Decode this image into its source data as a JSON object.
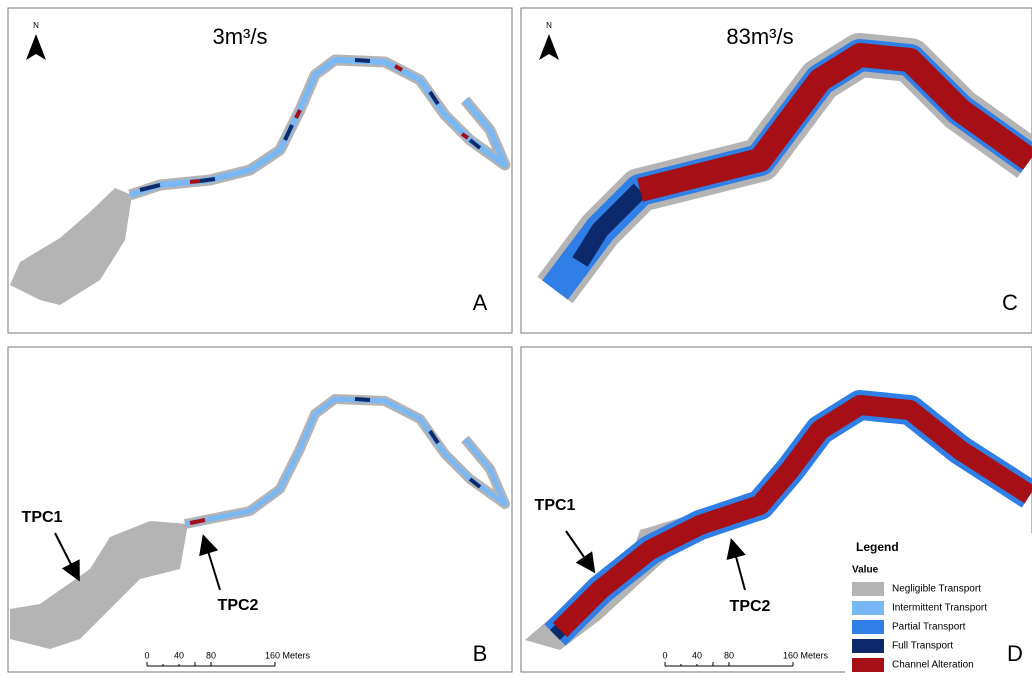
{
  "panels": [
    {
      "letter": "A",
      "north": "N",
      "flow": "3m³/s"
    },
    {
      "letter": "C",
      "north": "N",
      "flow": "83m³/s"
    },
    {
      "letter": "B",
      "north": null,
      "site_labels": [
        "TPC1",
        "TPC2"
      ],
      "scale": [
        "0",
        "40",
        "80",
        "160 Meters"
      ]
    },
    {
      "letter": "D",
      "north": null,
      "site_labels": [
        "TPC1",
        "TPC2"
      ],
      "scale": [
        "0",
        "40",
        "80",
        "160 Meters"
      ]
    }
  ],
  "legend": {
    "title": "Legend",
    "subtitle": "Value",
    "items": [
      {
        "label": "Negligible Transport",
        "color": "#b4b4b4"
      },
      {
        "label": "Intermittent Transport",
        "color": "#7ab8f5"
      },
      {
        "label": "Partial Transport",
        "color": "#2f7fe6"
      },
      {
        "label": "Full Transport",
        "color": "#0c2a6b"
      },
      {
        "label": "Channel Alteration",
        "color": "#a50f15"
      }
    ]
  }
}
